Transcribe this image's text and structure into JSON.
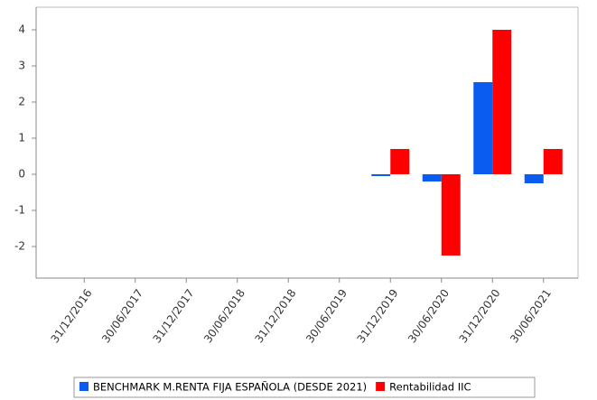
{
  "chart_data": {
    "type": "bar",
    "categories": [
      "31/12/2016",
      "30/06/2017",
      "31/12/2017",
      "30/06/2018",
      "31/12/2018",
      "30/06/2019",
      "31/12/2019",
      "30/06/2020",
      "31/12/2020",
      "30/06/2021"
    ],
    "series": [
      {
        "name": "BENCHMARK M.RENTA FIJA ESPAÑOLA (DESDE 2021)",
        "color": "#0a5cf0",
        "values": [
          null,
          null,
          null,
          null,
          null,
          null,
          -0.05,
          -0.2,
          2.55,
          -0.25
        ]
      },
      {
        "name": "Rentabilidad IIC",
        "color": "#ff0000",
        "values": [
          null,
          null,
          null,
          null,
          null,
          null,
          0.7,
          -2.25,
          4.0,
          0.7
        ]
      }
    ],
    "ylim": [
      -2.875,
      4.625
    ],
    "yticks": [
      -2,
      -1,
      0,
      1,
      2,
      3,
      4
    ],
    "grid": false,
    "legend": "bottom"
  }
}
